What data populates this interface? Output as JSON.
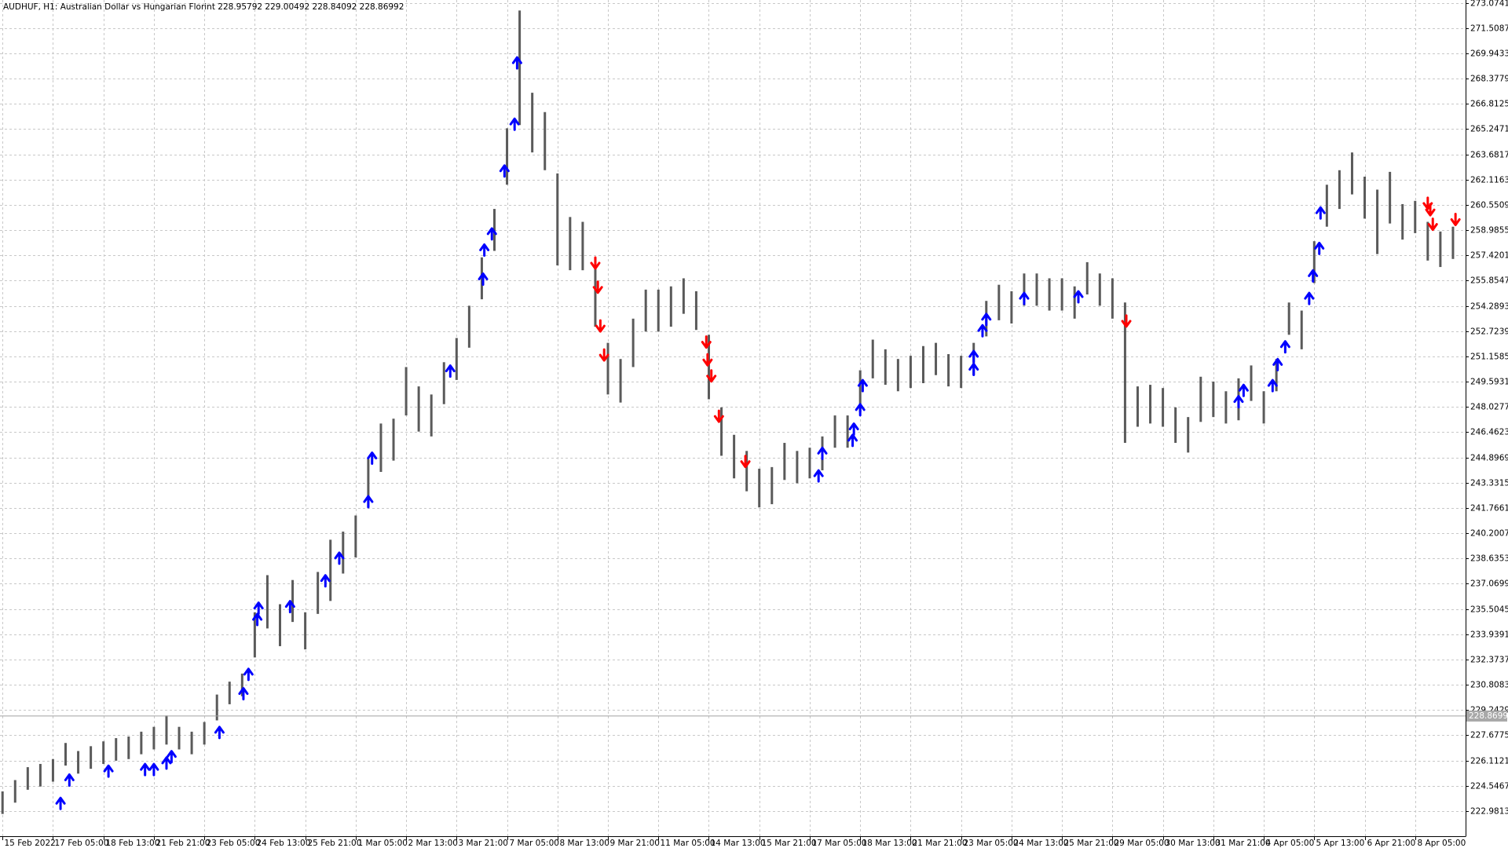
{
  "chart_data": {
    "type": "ohlc",
    "title": "AUDHUF, H1:  Australian Dollar vs Hungarian Florint  228.95792 229.00492 228.84092 228.86992",
    "categories": [
      "15 Feb 2022",
      null,
      null,
      null,
      "17 Feb 05:00",
      null,
      null,
      null,
      "18 Feb 13:00",
      null,
      null,
      null,
      "21 Feb 21:00",
      null,
      null,
      null,
      "23 Feb 05:00",
      null,
      null,
      null,
      "24 Feb 13:00",
      null,
      null,
      null,
      "25 Feb 21:00",
      null,
      null,
      null,
      "1 Mar 05:00",
      null,
      null,
      null,
      "2 Mar 13:00",
      null,
      null,
      null,
      "3 Mar 21:00",
      null,
      null,
      null,
      "7 Mar 05:00",
      null,
      null,
      null,
      "8 Mar 13:00",
      null,
      null,
      null,
      "9 Mar 21:00",
      null,
      null,
      null,
      "11 Mar 05:00",
      null,
      null,
      null,
      "14 Mar 13:00",
      null,
      null,
      null,
      "15 Mar 21:00",
      null,
      null,
      null,
      "17 Mar 05:00",
      null,
      null,
      null,
      "18 Mar 13:00",
      null,
      null,
      null,
      "21 Mar 21:00",
      null,
      null,
      null,
      "23 Mar 05:00",
      null,
      null,
      null,
      "24 Mar 13:00",
      null,
      null,
      null,
      "25 Mar 21:00",
      null,
      null,
      null,
      "29 Mar 05:00",
      null,
      null,
      null,
      "30 Mar 13:00",
      null,
      null,
      null,
      "31 Mar 21:00",
      null,
      null,
      null,
      "4 Apr 05:00",
      null,
      null,
      null,
      "5 Apr 13:00",
      null,
      null,
      null,
      "6 Apr 21:00",
      null,
      null,
      null,
      "8 Apr 05:00",
      null,
      null,
      null
    ],
    "high": [
      224.2,
      224.9,
      225.7,
      225.9,
      226.2,
      227.2,
      226.7,
      227.0,
      227.3,
      227.5,
      227.6,
      227.9,
      228.2,
      228.9,
      228.2,
      227.9,
      228.5,
      230.2,
      231.0,
      231.5,
      235.3,
      237.6,
      235.8,
      237.3,
      235.3,
      237.8,
      239.8,
      240.3,
      241.3,
      244.8,
      247.0,
      247.3,
      250.5,
      249.3,
      248.8,
      250.8,
      252.3,
      254.3,
      257.3,
      260.3,
      265.3,
      272.6,
      267.5,
      266.3,
      262.5,
      259.8,
      259.5,
      257.3,
      252.0,
      251.0,
      253.5,
      255.3,
      255.3,
      255.5,
      256.0,
      255.2,
      252.5,
      248.0,
      246.3,
      245.3,
      244.2,
      244.3,
      245.8,
      245.3,
      245.5,
      246.2,
      247.5,
      247.5,
      250.3,
      252.2,
      251.6,
      251.0,
      251.2,
      251.8,
      252.0,
      251.3,
      251.2,
      252.0,
      254.6,
      255.6,
      255.2,
      256.3,
      256.3,
      256.0,
      256.0,
      255.5,
      257.0,
      256.3,
      256.0,
      254.5,
      249.3,
      249.4,
      249.2,
      248.0,
      247.4,
      249.9,
      249.6,
      249.0,
      249.8,
      250.6,
      249.0,
      251.0,
      254.5,
      254.0,
      258.3,
      261.8,
      262.7,
      263.8,
      262.3,
      261.5,
      262.6,
      260.6,
      260.8,
      259.5,
      258.9,
      259.2
    ],
    "low": [
      222.8,
      223.5,
      224.3,
      224.5,
      224.8,
      225.8,
      225.3,
      225.6,
      225.9,
      226.1,
      226.2,
      226.5,
      226.8,
      227.1,
      226.8,
      226.5,
      227.1,
      228.6,
      229.6,
      230.1,
      232.5,
      234.3,
      233.2,
      234.7,
      233.0,
      235.2,
      236.0,
      237.7,
      238.7,
      241.8,
      244.0,
      244.7,
      247.5,
      246.5,
      246.2,
      248.2,
      249.7,
      251.7,
      254.7,
      257.7,
      261.8,
      265.5,
      263.8,
      262.7,
      256.8,
      256.5,
      256.5,
      253.0,
      248.8,
      248.3,
      250.5,
      252.7,
      252.7,
      253.0,
      253.8,
      252.8,
      248.5,
      245.0,
      243.6,
      242.8,
      241.8,
      242.0,
      243.5,
      243.3,
      243.6,
      244.1,
      245.5,
      245.5,
      247.7,
      249.8,
      249.4,
      249.0,
      249.2,
      249.5,
      250.0,
      249.3,
      249.2,
      250.0,
      252.4,
      253.4,
      253.2,
      254.3,
      254.3,
      254.0,
      254.0,
      253.5,
      255.0,
      254.3,
      253.5,
      245.8,
      246.8,
      247.0,
      246.8,
      245.8,
      245.2,
      247.1,
      247.4,
      247.0,
      247.2,
      248.4,
      247.0,
      249.0,
      252.5,
      251.6,
      255.7,
      259.2,
      260.3,
      261.2,
      259.7,
      257.5,
      259.4,
      258.4,
      258.8,
      257.1,
      256.7,
      257.2
    ],
    "color": "#5a5a5a",
    "buy_signals": {
      "color": "#0000ff",
      "x": [
        4.6,
        5.3,
        8.4,
        11.3,
        12.0,
        13.0,
        13.4,
        17.2,
        19.1,
        19.5,
        20.2,
        20.3,
        22.8,
        25.6,
        26.7,
        29.0,
        29.3,
        35.5,
        38.1,
        38.2,
        38.8,
        39.8,
        40.6,
        40.8,
        64.7,
        65.0,
        67.4,
        67.5,
        68.0,
        68.2,
        77.0,
        77.0,
        77.7,
        78.0,
        81.0,
        85.3,
        98.0,
        98.4,
        100.7,
        101.1,
        101.7,
        103.6,
        103.9,
        104.4,
        104.5
      ],
      "y": [
        223.5,
        224.95,
        225.5,
        225.6,
        225.6,
        226.0,
        226.4,
        227.9,
        230.3,
        231.5,
        234.9,
        235.6,
        235.7,
        237.3,
        238.7,
        242.2,
        244.9,
        250.3,
        256.0,
        257.8,
        258.8,
        262.7,
        265.6,
        269.4,
        243.8,
        245.2,
        246.0,
        246.7,
        247.9,
        249.4,
        250.4,
        251.2,
        252.8,
        253.5,
        254.8,
        254.9,
        248.4,
        249.1,
        249.4,
        250.7,
        251.8,
        254.8,
        256.2,
        257.9,
        260.1
      ]
    },
    "sell_signals": {
      "color": "#ff0000",
      "x": [
        47.0,
        47.2,
        47.4,
        47.7,
        55.8,
        55.9,
        56.2,
        56.8,
        58.9,
        89.1,
        113.0,
        113.2,
        113.4,
        115.2
      ],
      "y": [
        256.9,
        255.4,
        253.0,
        251.2,
        252.0,
        250.9,
        249.9,
        247.4,
        244.6,
        253.3,
        260.6,
        260.2,
        259.3,
        259.6
      ]
    },
    "current_price": 228.86992,
    "xlim": [
      -0.2,
      116
    ],
    "ylim": [
      221.42,
      273.25
    ],
    "yticks": [
      {
        "value": 273.0741,
        "label": "273.07410"
      },
      {
        "value": 271.5087,
        "label": "271.50870"
      },
      {
        "value": 269.9433,
        "label": "269.94330"
      },
      {
        "value": 268.3779,
        "label": "268.37790"
      },
      {
        "value": 266.8125,
        "label": "266.81250"
      },
      {
        "value": 265.2471,
        "label": "265.24710"
      },
      {
        "value": 263.6817,
        "label": "263.68170"
      },
      {
        "value": 262.1163,
        "label": "262.11630"
      },
      {
        "value": 260.5509,
        "label": "260.55090"
      },
      {
        "value": 258.9855,
        "label": "258.98550"
      },
      {
        "value": 257.4201,
        "label": "257.42010"
      },
      {
        "value": 255.8547,
        "label": "255.85470"
      },
      {
        "value": 254.2893,
        "label": "254.28930"
      },
      {
        "value": 252.7239,
        "label": "252.72390"
      },
      {
        "value": 251.1585,
        "label": "251.15850"
      },
      {
        "value": 249.5931,
        "label": "249.59310"
      },
      {
        "value": 248.0277,
        "label": "248.02770"
      },
      {
        "value": 246.4623,
        "label": "246.46230"
      },
      {
        "value": 244.8969,
        "label": "244.89690"
      },
      {
        "value": 243.3315,
        "label": "243.33150"
      },
      {
        "value": 241.7661,
        "label": "241.76610"
      },
      {
        "value": 240.2007,
        "label": "240.20070"
      },
      {
        "value": 238.6353,
        "label": "238.63530"
      },
      {
        "value": 237.0699,
        "label": "237.06990"
      },
      {
        "value": 235.5045,
        "label": "235.50450"
      },
      {
        "value": 233.9391,
        "label": "233.93910"
      },
      {
        "value": 232.3737,
        "label": "232.37370"
      },
      {
        "value": 230.8083,
        "label": "230.80830"
      },
      {
        "value": 229.2429,
        "label": "229.24290"
      },
      {
        "value": 227.6775,
        "label": "227.67750"
      },
      {
        "value": 226.1121,
        "label": "226.11210"
      },
      {
        "value": 224.5467,
        "label": "224.54670"
      },
      {
        "value": 222.9813,
        "label": "222.98130"
      }
    ],
    "grid": true
  }
}
